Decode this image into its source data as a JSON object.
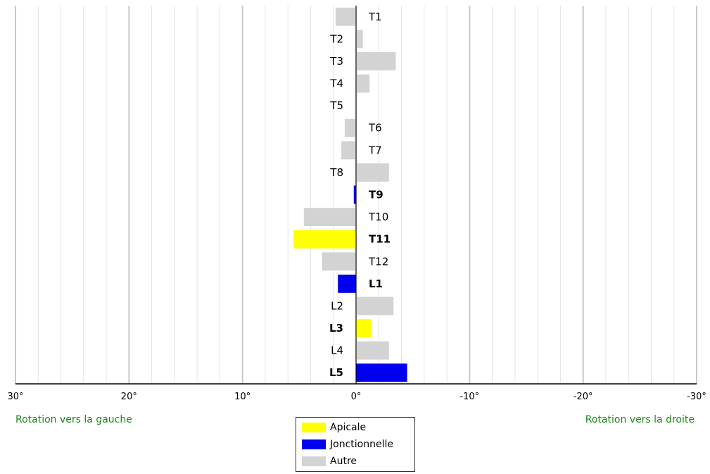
{
  "chart_data": {
    "type": "bar",
    "orientation": "horizontal",
    "title": "",
    "xlabel": "",
    "ylabel": "",
    "xlim": [
      30,
      -30
    ],
    "x_ticks": [
      30,
      20,
      10,
      0,
      -10,
      -20,
      -30
    ],
    "x_tick_labels": [
      "30°",
      "20°",
      "10°",
      "0°",
      "-10°",
      "-20°",
      "-30°"
    ],
    "grid": true,
    "left_direction_label": "Rotation vers la gauche",
    "right_direction_label": "Rotation vers la droite",
    "vertebrae": [
      {
        "label": "T1",
        "value": 1.8,
        "category": "Autre"
      },
      {
        "label": "T2",
        "value": -0.6,
        "category": "Autre"
      },
      {
        "label": "T3",
        "value": -3.5,
        "category": "Autre"
      },
      {
        "label": "T4",
        "value": -1.2,
        "category": "Autre"
      },
      {
        "label": "T5",
        "value": -0.1,
        "category": "Autre"
      },
      {
        "label": "T6",
        "value": 1.0,
        "category": "Autre"
      },
      {
        "label": "T7",
        "value": 1.3,
        "category": "Autre"
      },
      {
        "label": "T8",
        "value": -2.9,
        "category": "Autre"
      },
      {
        "label": "T9",
        "value": 0.2,
        "category": "Jonctionnelle"
      },
      {
        "label": "T10",
        "value": 4.6,
        "category": "Autre"
      },
      {
        "label": "T11",
        "value": 5.5,
        "category": "Apicale"
      },
      {
        "label": "T12",
        "value": 3.0,
        "category": "Autre"
      },
      {
        "label": "L1",
        "value": 1.6,
        "category": "Jonctionnelle"
      },
      {
        "label": "L2",
        "value": -3.3,
        "category": "Autre"
      },
      {
        "label": "L3",
        "value": -1.3,
        "category": "Apicale"
      },
      {
        "label": "L4",
        "value": -2.9,
        "category": "Autre"
      },
      {
        "label": "L5",
        "value": -4.5,
        "category": "Jonctionnelle"
      }
    ],
    "legend": {
      "placement": "bottom-center",
      "entries": [
        {
          "name": "Apicale",
          "color": "#ffff00"
        },
        {
          "name": "Jonctionnelle",
          "color": "#0000ee"
        },
        {
          "name": "Autre",
          "color": "#d3d3d3"
        }
      ]
    },
    "bold_categories": [
      "Apicale",
      "Jonctionnelle"
    ]
  }
}
